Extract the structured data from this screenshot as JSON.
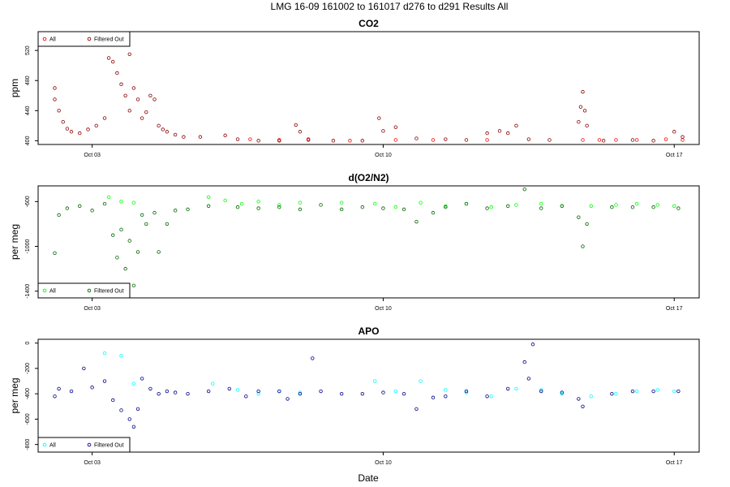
{
  "figure": {
    "main_title": "LMG   16-09    161002 to 161017    d276 to d291   Results All",
    "xlabel": "Date"
  },
  "chart_data": [
    {
      "type": "scatter",
      "title": "CO2",
      "ylabel": "ppm",
      "xlim": [
        275.7,
        291.6
      ],
      "ylim": [
        395,
        545
      ],
      "y_ticks": [
        400,
        440,
        480,
        520
      ],
      "x_ticks": [
        {
          "value": 277,
          "label": "Oct 03"
        },
        {
          "value": 284,
          "label": "Oct 10"
        },
        {
          "value": 291,
          "label": "Oct 17"
        }
      ],
      "legend_position": "top-left",
      "grid": false,
      "series": [
        {
          "name": "All",
          "color": "#ff0000",
          "marker": "open-circle",
          "points": [
            [
              280.8,
              402
            ],
            [
              281.5,
              401
            ],
            [
              282.2,
              401
            ],
            [
              283.2,
              400
            ],
            [
              284.3,
              401
            ],
            [
              285.2,
              401
            ],
            [
              286.5,
              401
            ],
            [
              288.8,
              401
            ],
            [
              289.2,
              401
            ],
            [
              289.6,
              401
            ],
            [
              290.1,
              401
            ],
            [
              290.8,
              402
            ],
            [
              291.2,
              401
            ]
          ]
        },
        {
          "name": "Filtered Out",
          "color": "#8b0000",
          "marker": "open-circle",
          "points": [
            [
              276.1,
              470
            ],
            [
              276.1,
              455
            ],
            [
              276.2,
              440
            ],
            [
              276.3,
              425
            ],
            [
              276.4,
              416
            ],
            [
              276.5,
              412
            ],
            [
              276.7,
              410
            ],
            [
              276.9,
              415
            ],
            [
              277.1,
              420
            ],
            [
              277.3,
              430
            ],
            [
              277.4,
              510
            ],
            [
              277.5,
              505
            ],
            [
              277.6,
              490
            ],
            [
              277.7,
              475
            ],
            [
              277.8,
              460
            ],
            [
              277.9,
              440
            ],
            [
              277.9,
              515
            ],
            [
              278.0,
              470
            ],
            [
              278.1,
              455
            ],
            [
              278.2,
              430
            ],
            [
              278.3,
              438
            ],
            [
              278.4,
              460
            ],
            [
              278.5,
              455
            ],
            [
              278.6,
              420
            ],
            [
              278.7,
              415
            ],
            [
              278.8,
              412
            ],
            [
              279.0,
              408
            ],
            [
              279.2,
              405
            ],
            [
              279.6,
              405
            ],
            [
              280.2,
              407
            ],
            [
              280.5,
              402
            ],
            [
              281.0,
              400
            ],
            [
              281.5,
              400
            ],
            [
              281.9,
              421
            ],
            [
              282.0,
              412
            ],
            [
              282.2,
              402
            ],
            [
              282.8,
              400
            ],
            [
              283.5,
              400
            ],
            [
              283.9,
              430
            ],
            [
              284.0,
              413
            ],
            [
              284.3,
              418
            ],
            [
              284.8,
              403
            ],
            [
              285.5,
              402
            ],
            [
              286.0,
              401
            ],
            [
              286.5,
              410
            ],
            [
              286.8,
              413
            ],
            [
              287.0,
              410
            ],
            [
              287.2,
              420
            ],
            [
              287.5,
              402
            ],
            [
              288.0,
              401
            ],
            [
              288.7,
              425
            ],
            [
              288.75,
              445
            ],
            [
              288.8,
              465
            ],
            [
              288.85,
              440
            ],
            [
              288.9,
              420
            ],
            [
              289.3,
              400
            ],
            [
              290.0,
              401
            ],
            [
              290.5,
              400
            ],
            [
              291.0,
              412
            ],
            [
              291.2,
              405
            ]
          ]
        }
      ]
    },
    {
      "type": "scatter",
      "title": "d(O2/N2)",
      "ylabel": "per meg",
      "xlim": [
        275.7,
        291.6
      ],
      "ylim": [
        -1460,
        -460
      ],
      "y_ticks": [
        -1400,
        -1000,
        -600
      ],
      "x_ticks": [
        {
          "value": 277,
          "label": "Oct 03"
        },
        {
          "value": 284,
          "label": "Oct 10"
        },
        {
          "value": 291,
          "label": "Oct 17"
        }
      ],
      "legend_position": "bottom-left",
      "grid": false,
      "series": [
        {
          "name": "All",
          "color": "#00ff00",
          "marker": "open-circle",
          "points": [
            [
              277.4,
              -560
            ],
            [
              277.7,
              -600
            ],
            [
              278.0,
              -610
            ],
            [
              279.8,
              -560
            ],
            [
              280.2,
              -590
            ],
            [
              280.6,
              -620
            ],
            [
              281.0,
              -600
            ],
            [
              281.5,
              -630
            ],
            [
              282.0,
              -610
            ],
            [
              283.0,
              -610
            ],
            [
              283.8,
              -620
            ],
            [
              284.3,
              -650
            ],
            [
              284.9,
              -610
            ],
            [
              285.5,
              -640
            ],
            [
              286.0,
              -620
            ],
            [
              286.6,
              -650
            ],
            [
              287.2,
              -630
            ],
            [
              287.8,
              -620
            ],
            [
              288.3,
              -640
            ],
            [
              289.0,
              -640
            ],
            [
              289.6,
              -630
            ],
            [
              290.1,
              -620
            ],
            [
              290.6,
              -630
            ],
            [
              291.0,
              -640
            ]
          ]
        },
        {
          "name": "Filtered Out",
          "color": "#006400",
          "marker": "open-circle",
          "points": [
            [
              276.1,
              -1060
            ],
            [
              276.2,
              -720
            ],
            [
              276.4,
              -660
            ],
            [
              276.7,
              -640
            ],
            [
              277.0,
              -680
            ],
            [
              277.3,
              -620
            ],
            [
              277.5,
              -900
            ],
            [
              277.6,
              -1100
            ],
            [
              277.7,
              -850
            ],
            [
              277.8,
              -1200
            ],
            [
              277.9,
              -950
            ],
            [
              278.0,
              -1350
            ],
            [
              278.1,
              -1050
            ],
            [
              278.2,
              -720
            ],
            [
              278.3,
              -800
            ],
            [
              278.5,
              -700
            ],
            [
              278.6,
              -1050
            ],
            [
              278.8,
              -800
            ],
            [
              279.0,
              -680
            ],
            [
              279.3,
              -670
            ],
            [
              279.8,
              -640
            ],
            [
              280.5,
              -650
            ],
            [
              281.0,
              -660
            ],
            [
              281.5,
              -650
            ],
            [
              282.0,
              -670
            ],
            [
              282.5,
              -630
            ],
            [
              283.0,
              -670
            ],
            [
              283.5,
              -650
            ],
            [
              284.0,
              -660
            ],
            [
              284.5,
              -670
            ],
            [
              284.8,
              -780
            ],
            [
              285.2,
              -700
            ],
            [
              285.5,
              -650
            ],
            [
              286.0,
              -620
            ],
            [
              286.5,
              -660
            ],
            [
              287.0,
              -640
            ],
            [
              287.4,
              -490
            ],
            [
              287.8,
              -660
            ],
            [
              288.3,
              -640
            ],
            [
              288.7,
              -740
            ],
            [
              288.8,
              -1000
            ],
            [
              288.9,
              -800
            ],
            [
              289.5,
              -650
            ],
            [
              290.0,
              -650
            ],
            [
              290.5,
              -650
            ],
            [
              291.1,
              -660
            ]
          ]
        }
      ]
    },
    {
      "type": "scatter",
      "title": "APO",
      "ylabel": "per meg",
      "xlim": [
        275.7,
        291.6
      ],
      "ylim": [
        -860,
        30
      ],
      "y_ticks": [
        -800,
        -600,
        -400,
        -200,
        0
      ],
      "x_ticks": [
        {
          "value": 277,
          "label": "Oct 03"
        },
        {
          "value": 284,
          "label": "Oct 10"
        },
        {
          "value": 291,
          "label": "Oct 17"
        }
      ],
      "legend_position": "bottom-left",
      "grid": false,
      "series": [
        {
          "name": "All",
          "color": "#00ffff",
          "marker": "open-circle",
          "points": [
            [
              277.3,
              -80
            ],
            [
              277.7,
              -100
            ],
            [
              278.0,
              -320
            ],
            [
              279.9,
              -320
            ],
            [
              280.5,
              -370
            ],
            [
              281.0,
              -400
            ],
            [
              281.5,
              -380
            ],
            [
              282.0,
              -390
            ],
            [
              283.8,
              -300
            ],
            [
              284.3,
              -380
            ],
            [
              284.9,
              -300
            ],
            [
              285.5,
              -370
            ],
            [
              286.0,
              -390
            ],
            [
              286.6,
              -420
            ],
            [
              287.2,
              -360
            ],
            [
              287.8,
              -370
            ],
            [
              288.3,
              -400
            ],
            [
              289.0,
              -420
            ],
            [
              289.6,
              -400
            ],
            [
              290.1,
              -380
            ],
            [
              290.6,
              -370
            ],
            [
              291.0,
              -380
            ]
          ]
        },
        {
          "name": "Filtered Out",
          "color": "#00008b",
          "marker": "open-circle",
          "points": [
            [
              276.1,
              -420
            ],
            [
              276.2,
              -360
            ],
            [
              276.5,
              -380
            ],
            [
              276.8,
              -200
            ],
            [
              277.0,
              -350
            ],
            [
              277.3,
              -300
            ],
            [
              277.5,
              -450
            ],
            [
              277.7,
              -530
            ],
            [
              277.9,
              -600
            ],
            [
              278.0,
              -660
            ],
            [
              278.1,
              -520
            ],
            [
              278.2,
              -280
            ],
            [
              278.4,
              -360
            ],
            [
              278.6,
              -400
            ],
            [
              278.8,
              -380
            ],
            [
              279.0,
              -390
            ],
            [
              279.3,
              -400
            ],
            [
              279.8,
              -380
            ],
            [
              280.3,
              -360
            ],
            [
              280.7,
              -420
            ],
            [
              281.0,
              -380
            ],
            [
              281.5,
              -380
            ],
            [
              281.7,
              -440
            ],
            [
              282.0,
              -400
            ],
            [
              282.3,
              -120
            ],
            [
              282.5,
              -380
            ],
            [
              283.0,
              -400
            ],
            [
              283.5,
              -400
            ],
            [
              284.0,
              -390
            ],
            [
              284.5,
              -400
            ],
            [
              284.8,
              -520
            ],
            [
              285.2,
              -430
            ],
            [
              285.5,
              -420
            ],
            [
              286.0,
              -380
            ],
            [
              286.5,
              -420
            ],
            [
              287.0,
              -360
            ],
            [
              287.4,
              -150
            ],
            [
              287.5,
              -280
            ],
            [
              287.6,
              -10
            ],
            [
              287.8,
              -380
            ],
            [
              288.3,
              -390
            ],
            [
              288.7,
              -440
            ],
            [
              288.8,
              -500
            ],
            [
              289.5,
              -400
            ],
            [
              290.0,
              -380
            ],
            [
              290.5,
              -380
            ],
            [
              291.1,
              -380
            ]
          ]
        }
      ]
    }
  ]
}
